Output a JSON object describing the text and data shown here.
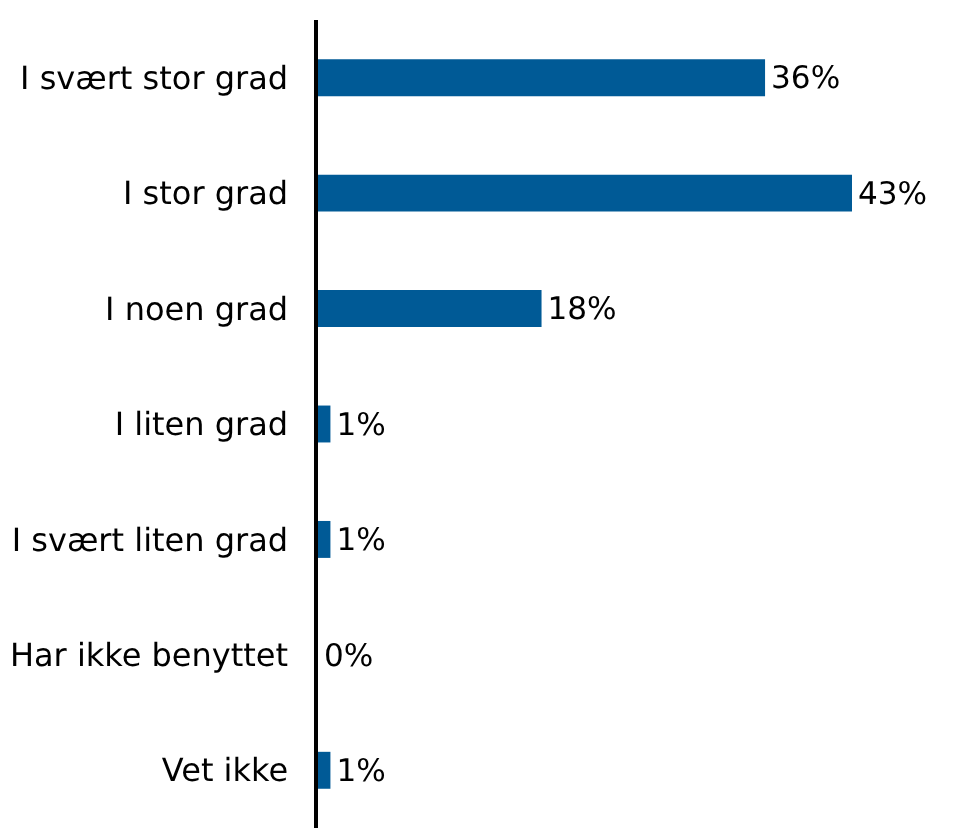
{
  "chart_data": {
    "type": "bar",
    "orientation": "horizontal",
    "categories": [
      "I svært stor grad",
      "I stor grad",
      "I noen grad",
      "I liten grad",
      "I svært liten grad",
      "Har ikke benyttet",
      "Vet ikke"
    ],
    "values": [
      36,
      43,
      18,
      1,
      1,
      0,
      1
    ],
    "value_labels": [
      "36%",
      "43%",
      "18%",
      "1%",
      "1%",
      "0%",
      "1%"
    ],
    "color": "#005a96"
  }
}
